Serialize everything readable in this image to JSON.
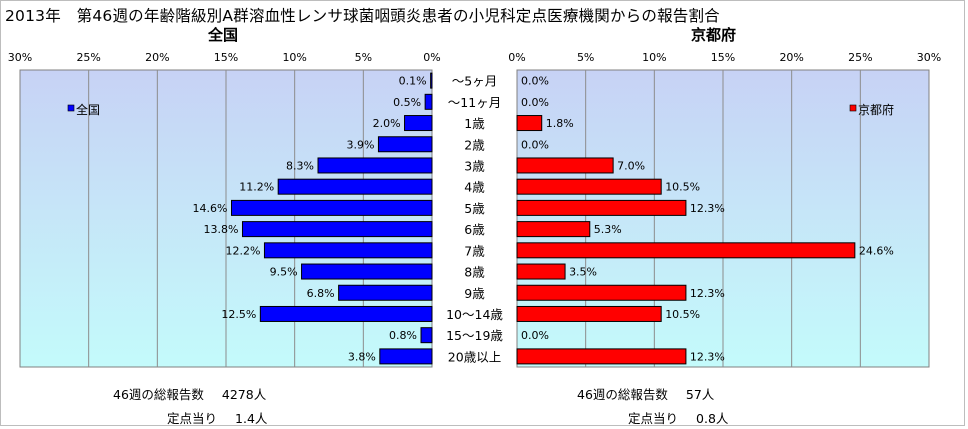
{
  "title": "2013年　第46週の年齢階級別A群溶血性レンサ球菌咽頭炎患者の小児科定点医療機関からの報告割合",
  "colors": {
    "left_bar": "#0000ff",
    "right_bar": "#ff0000",
    "bar_edge": "#000000",
    "plot_top": "#c7d2f5",
    "plot_bottom": "#c4fbfb"
  },
  "chart_data": [
    {
      "type": "bar",
      "orientation": "horizontal-mirrored",
      "title": "全国",
      "categories": [
        "〜5ヶ月",
        "〜11ヶ月",
        "1歳",
        "2歳",
        "3歳",
        "4歳",
        "5歳",
        "6歳",
        "7歳",
        "8歳",
        "9歳",
        "10〜14歳",
        "15〜19歳",
        "20歳以上"
      ],
      "series": [
        {
          "name": "全国",
          "values": [
            0.1,
            0.5,
            2.0,
            3.9,
            8.3,
            11.2,
            14.6,
            13.8,
            12.2,
            9.5,
            6.8,
            12.5,
            0.8,
            3.8
          ]
        }
      ],
      "data_labels": [
        "0.1%",
        "0.5%",
        "2.0%",
        "3.9%",
        "8.3%",
        "11.2%",
        "14.6%",
        "13.8%",
        "12.2%",
        "9.5%",
        "6.8%",
        "12.5%",
        "0.8%",
        "3.8%"
      ],
      "xlim": [
        0,
        30
      ],
      "ticks": [
        0,
        5,
        10,
        15,
        20,
        25,
        30
      ],
      "tick_labels": [
        "0%",
        "5%",
        "10%",
        "15%",
        "20%",
        "25%",
        "30%"
      ],
      "legend": "top-left",
      "grid": true
    },
    {
      "type": "bar",
      "orientation": "horizontal",
      "title": "京都府",
      "categories": [
        "〜5ヶ月",
        "〜11ヶ月",
        "1歳",
        "2歳",
        "3歳",
        "4歳",
        "5歳",
        "6歳",
        "7歳",
        "8歳",
        "9歳",
        "10〜14歳",
        "15〜19歳",
        "20歳以上"
      ],
      "series": [
        {
          "name": "京都府",
          "values": [
            0.0,
            0.0,
            1.8,
            0.0,
            7.0,
            10.5,
            12.3,
            5.3,
            24.6,
            3.5,
            12.3,
            10.5,
            0.0,
            12.3
          ]
        }
      ],
      "data_labels": [
        "0.0%",
        "0.0%",
        "1.8%",
        "0.0%",
        "7.0%",
        "10.5%",
        "12.3%",
        "5.3%",
        "24.6%",
        "3.5%",
        "12.3%",
        "10.5%",
        "0.0%",
        "12.3%"
      ],
      "xlim": [
        0,
        30
      ],
      "ticks": [
        0,
        5,
        10,
        15,
        20,
        25,
        30
      ],
      "tick_labels": [
        "0%",
        "5%",
        "10%",
        "15%",
        "20%",
        "25%",
        "30%"
      ],
      "legend": "top-right",
      "grid": true
    }
  ],
  "footer": {
    "left": {
      "total_label": "46週の総報告数",
      "total_value": "4278人",
      "per_label": "定点当り",
      "per_value": "1.4人"
    },
    "right": {
      "total_label": "46週の総報告数",
      "total_value": "57人",
      "per_label": "定点当り",
      "per_value": "0.8人"
    }
  }
}
